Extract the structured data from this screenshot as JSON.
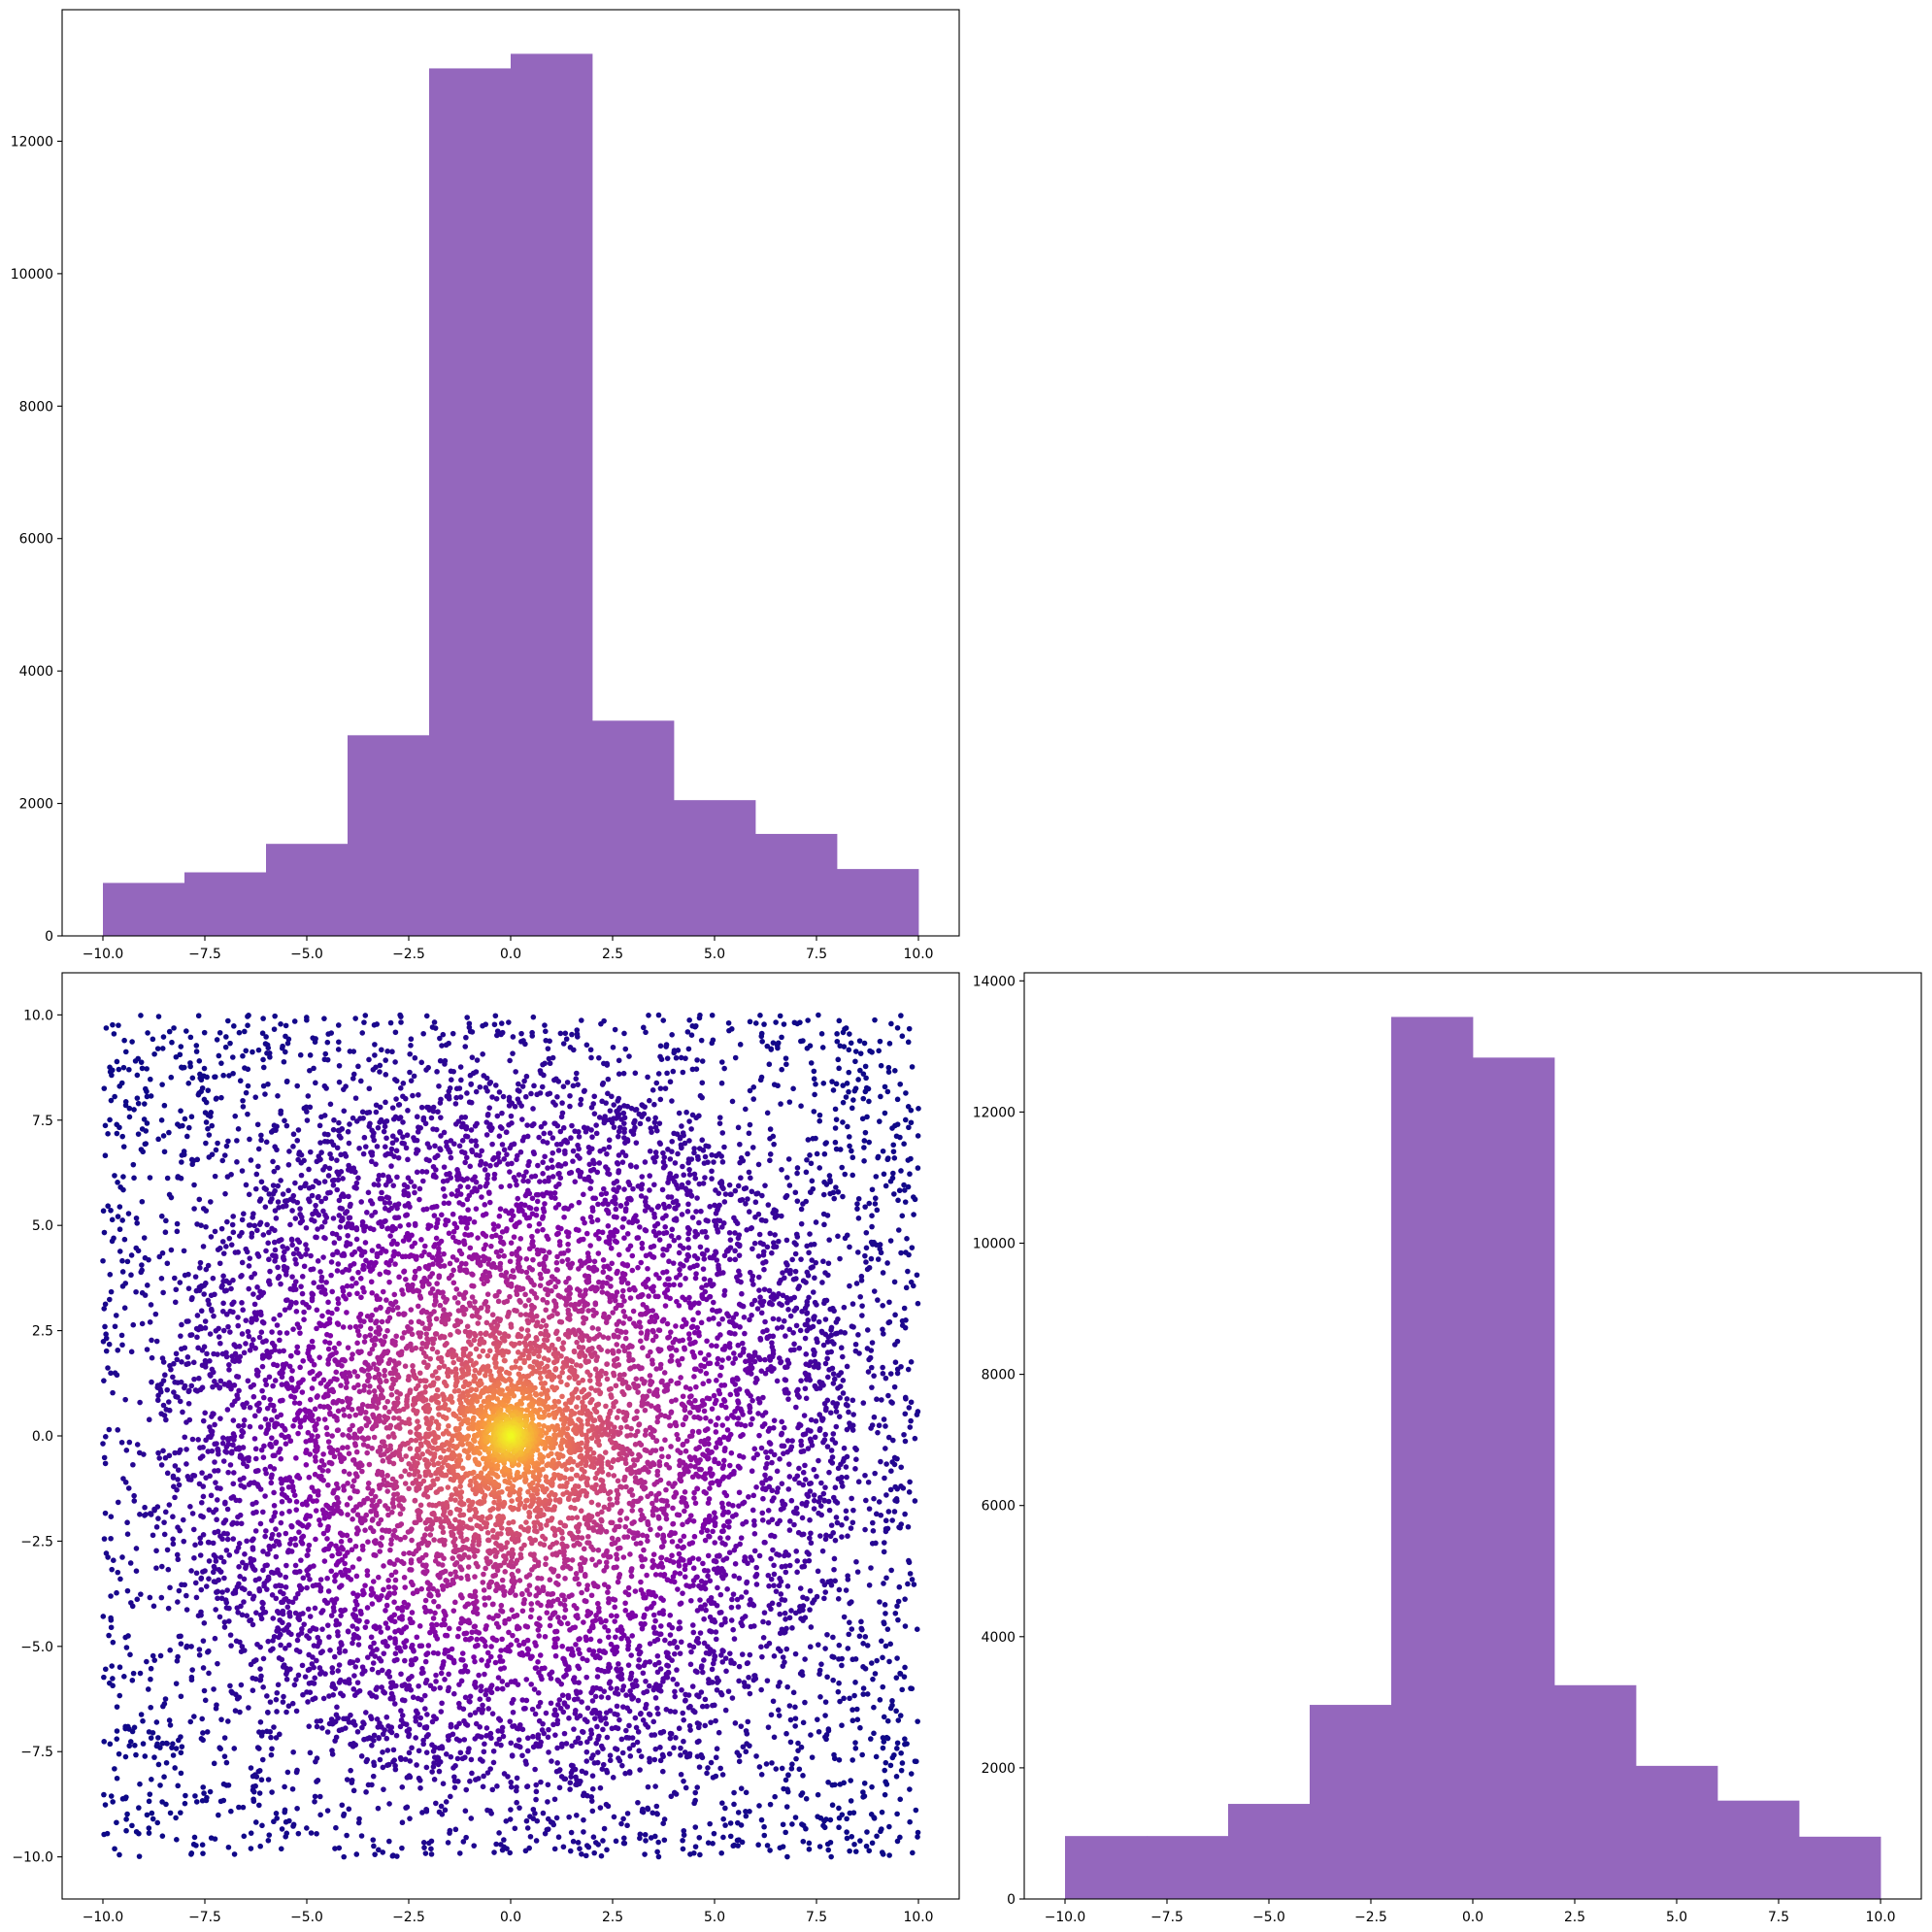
{
  "colors": {
    "bar_fill": "#9467bd",
    "axis": "#000000",
    "background": "#ffffff",
    "scatter_colormap": [
      "#0d0887",
      "#6a00a8",
      "#b12a90",
      "#e16462",
      "#fca636",
      "#f0f921"
    ]
  },
  "chart_data": [
    {
      "id": "hist-top-left",
      "type": "bar",
      "subtype": "histogram",
      "title": "",
      "xlabel": "",
      "ylabel": "",
      "bin_edges": [
        -10,
        -8,
        -6,
        -4,
        -2,
        0,
        2,
        4,
        6,
        8,
        10
      ],
      "values": [
        800,
        960,
        1390,
        3030,
        13100,
        13320,
        3250,
        2050,
        1540,
        1010
      ],
      "xlim": [
        -11,
        11
      ],
      "ylim": [
        0,
        13986
      ],
      "xticks": [
        -10,
        -7.5,
        -5,
        -2.5,
        0,
        2.5,
        5,
        7.5,
        10
      ],
      "xtick_labels": [
        "−10.0",
        "−7.5",
        "−5.0",
        "−2.5",
        "0.0",
        "2.5",
        "5.0",
        "7.5",
        "10.0"
      ],
      "yticks": [
        0,
        2000,
        4000,
        6000,
        8000,
        10000,
        12000
      ],
      "ytick_labels": [
        "0",
        "2000",
        "4000",
        "6000",
        "8000",
        "10000",
        "12000"
      ],
      "grid": false
    },
    {
      "id": "scatter-bottom-left",
      "type": "scatter",
      "title": "",
      "xlabel": "",
      "ylabel": "",
      "n_points": 11000,
      "x_range": [
        -10,
        10
      ],
      "y_range": [
        -10,
        10
      ],
      "center": [
        0,
        0
      ],
      "color_encoding": "radial density, plasma colormap (yellow at center, dark blue at edges)",
      "xlim": [
        -11,
        11
      ],
      "ylim": [
        -11,
        11
      ],
      "xticks": [
        -10,
        -7.5,
        -5,
        -2.5,
        0,
        2.5,
        5,
        7.5,
        10
      ],
      "xtick_labels": [
        "−10.0",
        "−7.5",
        "−5.0",
        "−2.5",
        "0.0",
        "2.5",
        "5.0",
        "7.5",
        "10.0"
      ],
      "yticks": [
        -10,
        -7.5,
        -5,
        -2.5,
        0,
        2.5,
        5,
        7.5,
        10
      ],
      "ytick_labels": [
        "−10.0",
        "−7.5",
        "−5.0",
        "−2.5",
        "0.0",
        "2.5",
        "5.0",
        "7.5",
        "10.0"
      ],
      "grid": false
    },
    {
      "id": "hist-bottom-right",
      "type": "bar",
      "subtype": "histogram",
      "title": "",
      "xlabel": "",
      "ylabel": "",
      "bin_edges": [
        -10,
        -8,
        -6,
        -4,
        -2,
        0,
        2,
        4,
        6,
        8,
        10
      ],
      "values": [
        960,
        960,
        1450,
        2960,
        13450,
        12830,
        3260,
        2030,
        1500,
        950
      ],
      "xlim": [
        -11,
        11
      ],
      "ylim": [
        0,
        14123
      ],
      "xticks": [
        -10,
        -7.5,
        -5,
        -2.5,
        0,
        2.5,
        5,
        7.5,
        10
      ],
      "xtick_labels": [
        "−10.0",
        "−7.5",
        "−5.0",
        "−2.5",
        "0.0",
        "2.5",
        "5.0",
        "7.5",
        "10.0"
      ],
      "yticks": [
        0,
        2000,
        4000,
        6000,
        8000,
        10000,
        12000,
        14000
      ],
      "ytick_labels": [
        "0",
        "2000",
        "4000",
        "6000",
        "8000",
        "10000",
        "12000",
        "14000"
      ],
      "grid": false
    }
  ]
}
